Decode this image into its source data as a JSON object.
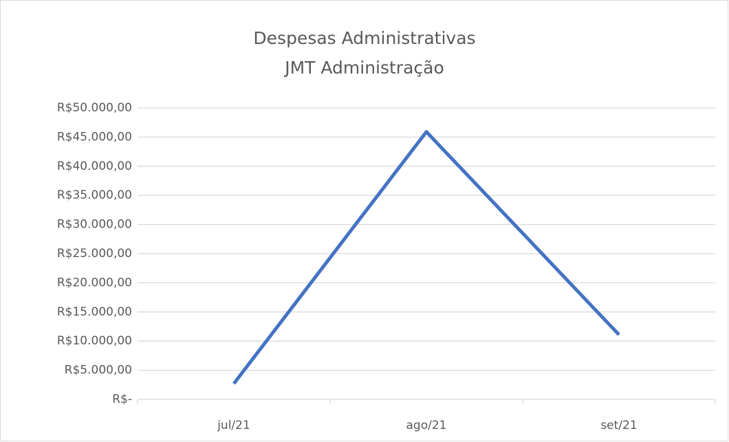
{
  "chart_data": {
    "type": "line",
    "title": "Despesas Administrativas",
    "subtitle": "JMT Administração",
    "categories": [
      "jul/21",
      "ago/21",
      "set/21"
    ],
    "series": [
      {
        "name": "Despesas",
        "color": "#4472c4",
        "values": [
          2700,
          45900,
          11100
        ]
      }
    ],
    "ylim": [
      0,
      50000
    ],
    "yticks": [
      {
        "value": 0,
        "label": "R$-"
      },
      {
        "value": 5000,
        "label": "R$5.000,00"
      },
      {
        "value": 10000,
        "label": "R$10.000,00"
      },
      {
        "value": 15000,
        "label": "R$15.000,00"
      },
      {
        "value": 20000,
        "label": "R$20.000,00"
      },
      {
        "value": 25000,
        "label": "R$25.000,00"
      },
      {
        "value": 30000,
        "label": "R$30.000,00"
      },
      {
        "value": 35000,
        "label": "R$35.000,00"
      },
      {
        "value": 40000,
        "label": "R$40.000,00"
      },
      {
        "value": 45000,
        "label": "R$45.000,00"
      },
      {
        "value": 50000,
        "label": "R$50.000,00"
      }
    ],
    "grid": true
  }
}
